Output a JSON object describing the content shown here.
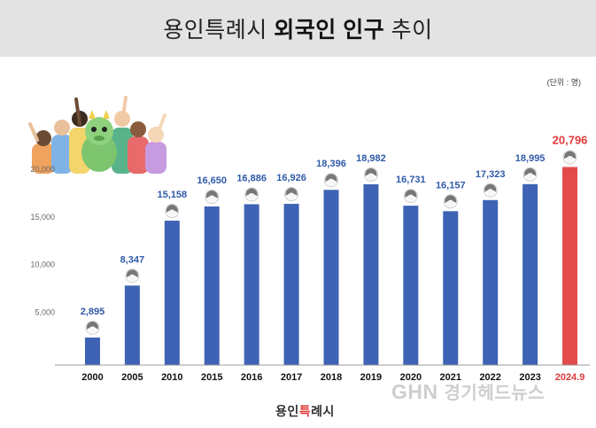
{
  "header": {
    "title_light": "용인특례시",
    "title_bold": "외국인 인구",
    "title_tail": "추이"
  },
  "unit_label": "(단위 : 명)",
  "colors": {
    "bar": "#3e63b4",
    "highlight": "#e14b4b",
    "label_blue": "#2f5aa8",
    "label_red": "#e03b3b",
    "header_bg": "#e3e3e3"
  },
  "chart_data": {
    "type": "bar",
    "categories": [
      "2000",
      "2005",
      "2010",
      "2015",
      "2016",
      "2017",
      "2018",
      "2019",
      "2020",
      "2021",
      "2022",
      "2023",
      "2024.9"
    ],
    "values": [
      2895,
      8347,
      15158,
      16650,
      16886,
      16926,
      18396,
      18982,
      16731,
      16157,
      17323,
      18995,
      20796
    ],
    "value_labels": [
      "2,895",
      "8,347",
      "15,158",
      "16,650",
      "16,886",
      "16,926",
      "18,396",
      "18,982",
      "16,731",
      "16,157",
      "17,323",
      "18,995",
      "20,796"
    ],
    "highlight_index": 12,
    "yticks": [
      5000,
      10000,
      15000,
      20000
    ],
    "ytick_labels": [
      "5,000",
      "10,000",
      "15,000",
      "20,000"
    ],
    "ylim": [
      0,
      20000
    ],
    "title": "용인특례시 외국인 인구 추이",
    "xlabel": "",
    "ylabel": "",
    "grid": false,
    "marker_icon": "person-head-icon"
  },
  "footer": {
    "logo_part1": "용인",
    "logo_part2": "특",
    "logo_part3": "례시",
    "watermark_logo": "GHN",
    "watermark_name": "경기헤드뉴스"
  },
  "illustration": "crowd-with-dragon-mascot-illustration"
}
